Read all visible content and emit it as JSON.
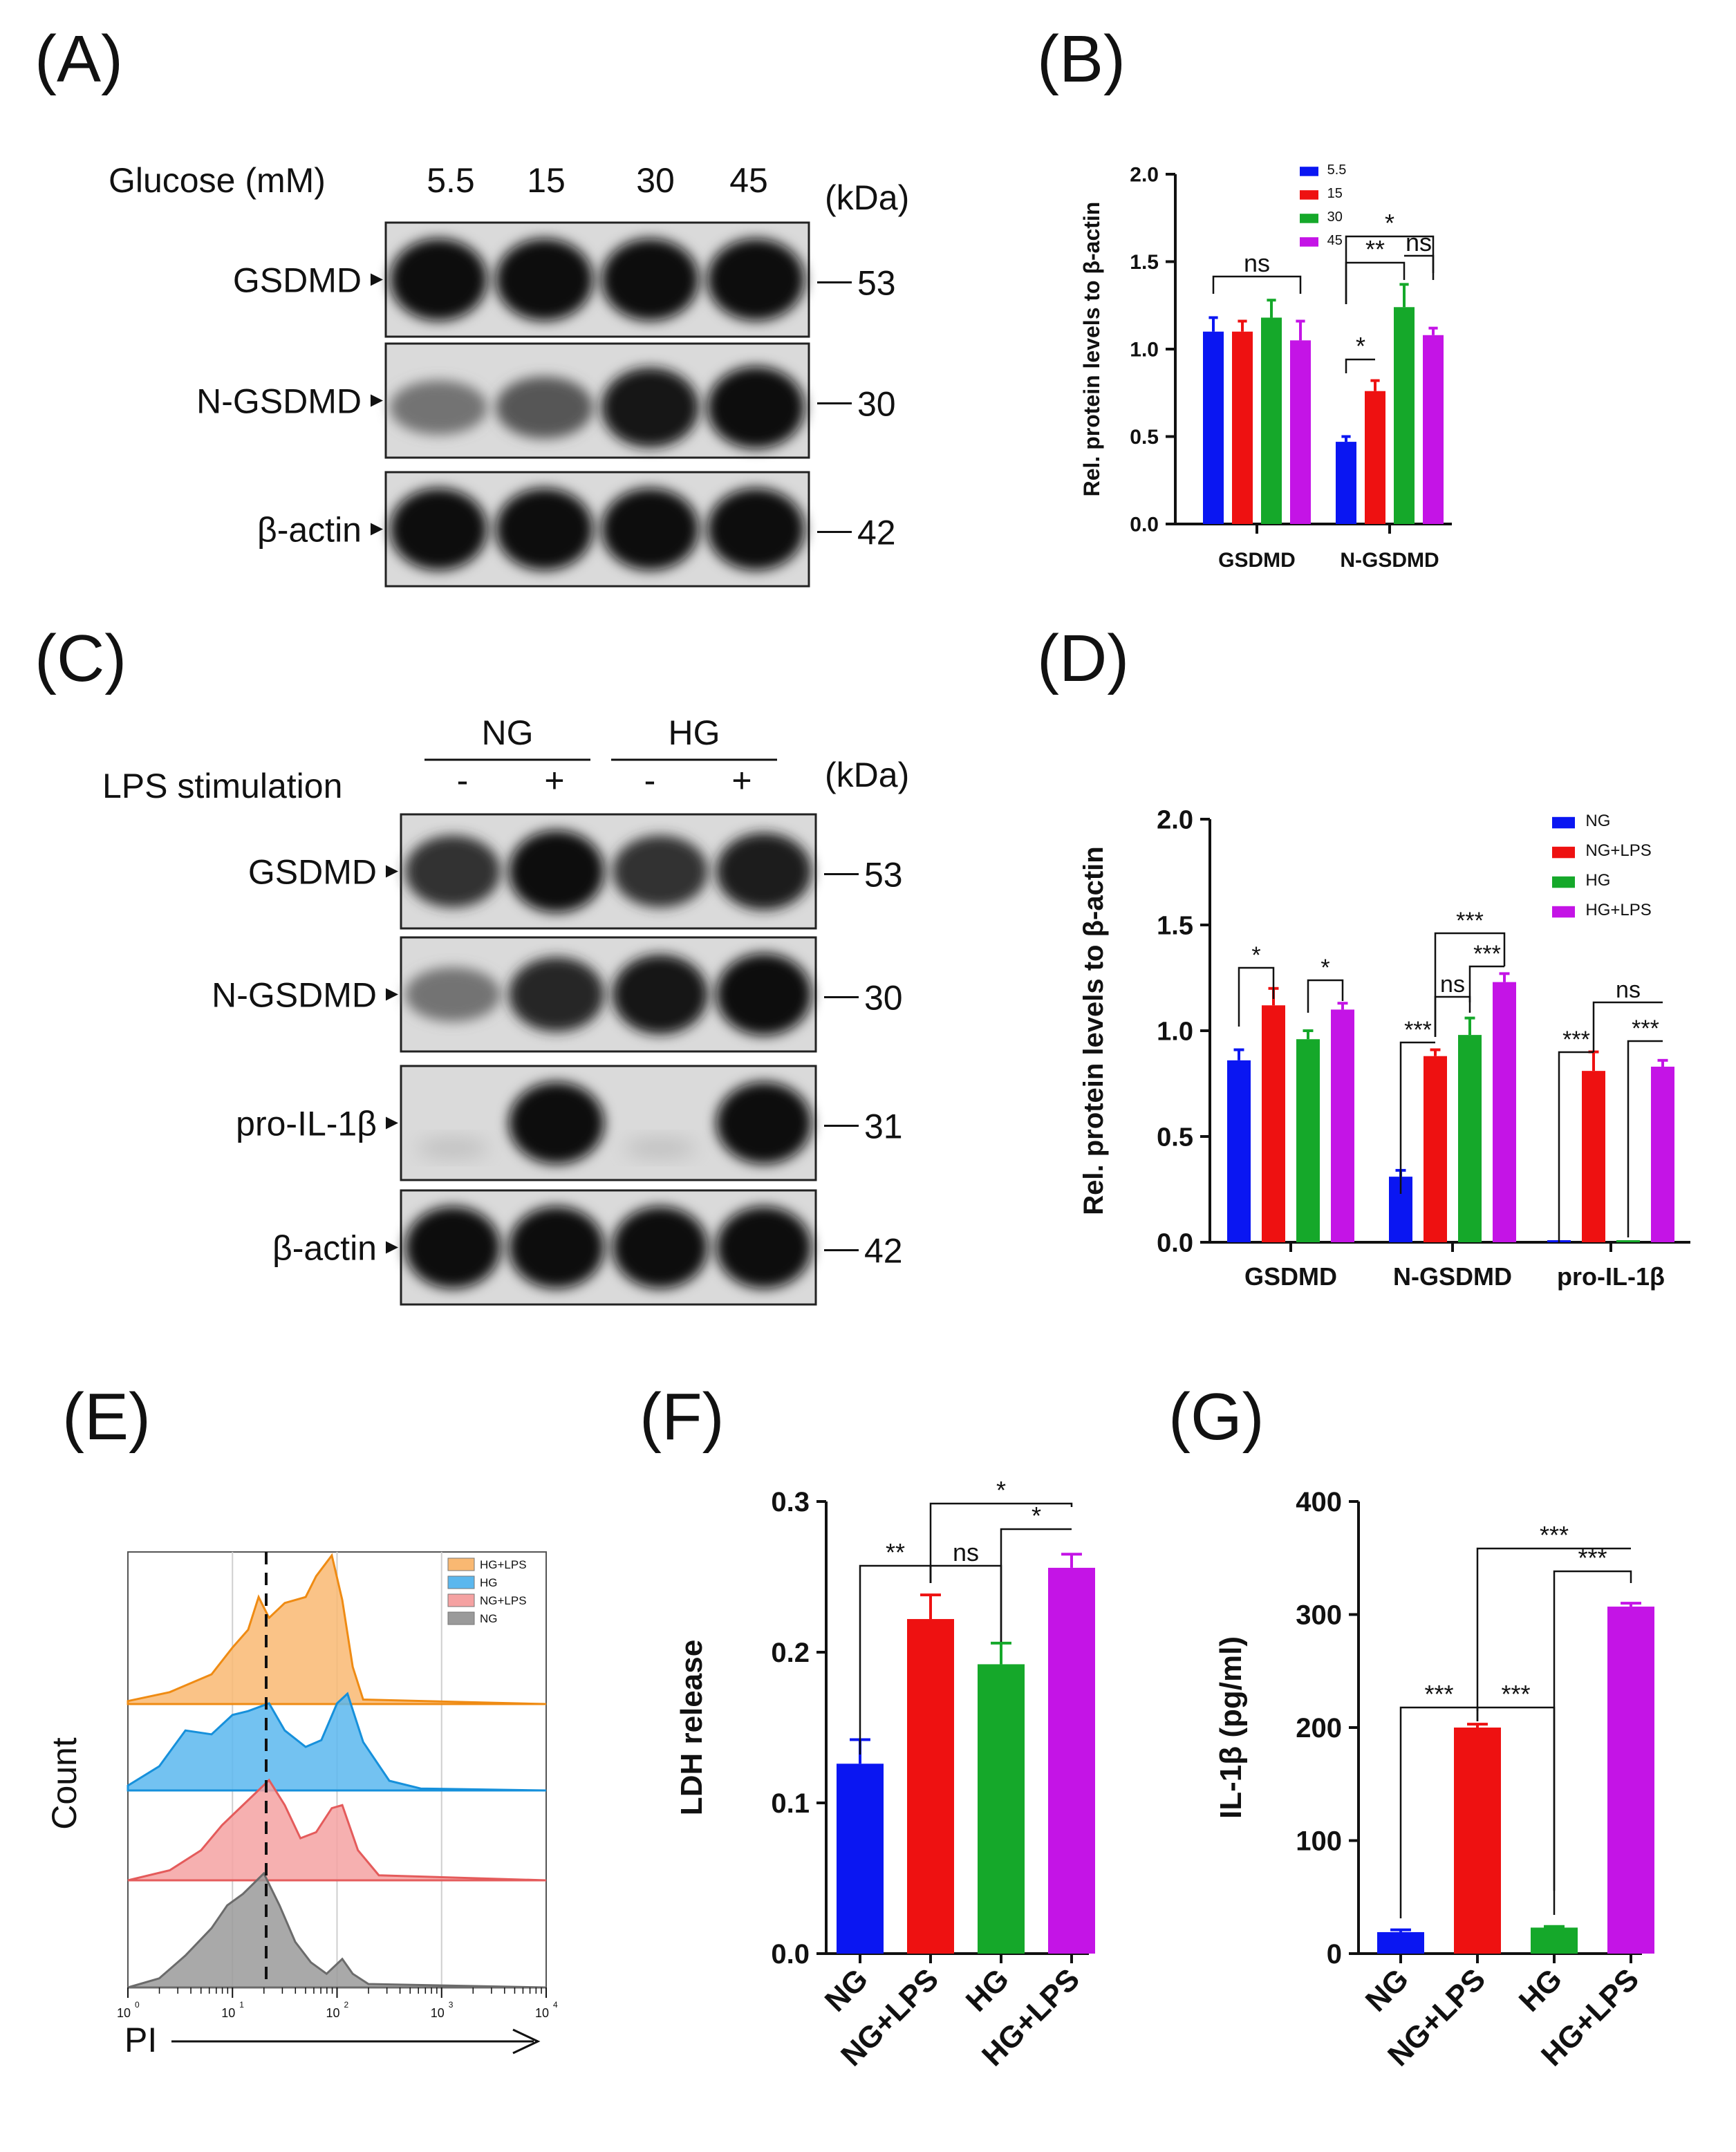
{
  "panels": {
    "A": "(A)",
    "B": "(B)",
    "C": "(C)",
    "D": "(D)",
    "E": "(E)",
    "F": "(F)",
    "G": "(G)"
  },
  "blotA": {
    "condition_label": "Glucose (mM)",
    "lanes": [
      "5.5",
      "15",
      "30",
      "45"
    ],
    "kda_label": "(kDa)",
    "rows": [
      {
        "name": "GSDMD",
        "kda": "53",
        "intensity": [
          1.0,
          1.0,
          1.0,
          1.0
        ]
      },
      {
        "name": "N-GSDMD",
        "kda": "30",
        "intensity": [
          0.45,
          0.6,
          0.95,
          1.0
        ]
      },
      {
        "name": "β-actin",
        "kda": "42",
        "intensity": [
          1.0,
          1.0,
          1.0,
          1.0
        ]
      }
    ]
  },
  "blotC": {
    "groups": [
      "NG",
      "HG"
    ],
    "condition_label": "LPS stimulation",
    "lanes": [
      "-",
      "+",
      "-",
      "+"
    ],
    "kda_label": "(kDa)",
    "rows": [
      {
        "name": "GSDMD",
        "kda": "53",
        "intensity": [
          0.8,
          1.0,
          0.8,
          0.9
        ]
      },
      {
        "name": "N-GSDMD",
        "kda": "30",
        "intensity": [
          0.45,
          0.85,
          0.95,
          1.0
        ]
      },
      {
        "name": "pro-IL-1β",
        "kda": "31",
        "intensity": [
          0.0,
          1.0,
          0.0,
          1.0
        ]
      },
      {
        "name": "β-actin",
        "kda": "42",
        "intensity": [
          1.0,
          1.0,
          1.0,
          1.0
        ]
      }
    ]
  },
  "chart_data": [
    {
      "id": "B",
      "type": "bar",
      "ylabel": "Rel. protein levels to β-actin",
      "ylim": [
        0,
        2.0
      ],
      "yticks": [
        "0.0",
        "0.5",
        "1.0",
        "1.5",
        "2.0"
      ],
      "categories": [
        "GSDMD",
        "N-GSDMD"
      ],
      "series": [
        {
          "name": "5.5",
          "color": "#0a16f2",
          "values": [
            1.1,
            0.47
          ],
          "errors": [
            0.08,
            0.03
          ]
        },
        {
          "name": "15",
          "color": "#ee1111",
          "values": [
            1.1,
            0.76
          ],
          "errors": [
            0.06,
            0.06
          ]
        },
        {
          "name": "30",
          "color": "#15a82a",
          "values": [
            1.18,
            1.24
          ],
          "errors": [
            0.1,
            0.13
          ]
        },
        {
          "name": "45",
          "color": "#c414e6",
          "values": [
            1.05,
            1.08
          ],
          "errors": [
            0.11,
            0.04
          ]
        }
      ],
      "significance": [
        {
          "cat": 0,
          "from": 0,
          "to": 3,
          "label": "ns"
        },
        {
          "cat": 1,
          "from": 0,
          "to": 1,
          "label": "*"
        },
        {
          "cat": 1,
          "from": 0,
          "to": 2,
          "label": "**"
        },
        {
          "cat": 1,
          "from": 2,
          "to": 3,
          "label": "ns"
        },
        {
          "cat": 1,
          "from": 0,
          "to": 3,
          "label": "*"
        }
      ]
    },
    {
      "id": "D",
      "type": "bar",
      "ylabel": "Rel. protein levels to β-actin",
      "ylim": [
        0,
        2.0
      ],
      "yticks": [
        "0.0",
        "0.5",
        "1.0",
        "1.5",
        "2.0"
      ],
      "categories": [
        "GSDMD",
        "N-GSDMD",
        "pro-IL-1β"
      ],
      "series": [
        {
          "name": "NG",
          "color": "#0a16f2",
          "values": [
            0.86,
            0.31,
            0.0
          ],
          "errors": [
            0.05,
            0.03,
            0.0
          ]
        },
        {
          "name": "NG+LPS",
          "color": "#ee1111",
          "values": [
            1.12,
            0.88,
            0.81
          ],
          "errors": [
            0.08,
            0.03,
            0.09
          ]
        },
        {
          "name": "HG",
          "color": "#15a82a",
          "values": [
            0.96,
            0.98,
            0.0
          ],
          "errors": [
            0.04,
            0.08,
            0.0
          ]
        },
        {
          "name": "HG+LPS",
          "color": "#c414e6",
          "values": [
            1.1,
            1.23,
            0.83
          ],
          "errors": [
            0.03,
            0.04,
            0.03
          ]
        }
      ],
      "significance": [
        {
          "cat": 0,
          "from": 0,
          "to": 1,
          "label": "*"
        },
        {
          "cat": 0,
          "from": 2,
          "to": 3,
          "label": "*"
        },
        {
          "cat": 1,
          "from": 0,
          "to": 1,
          "label": "***"
        },
        {
          "cat": 1,
          "from": 1,
          "to": 2,
          "label": "ns"
        },
        {
          "cat": 1,
          "from": 2,
          "to": 3,
          "label": "***"
        },
        {
          "cat": 1,
          "from": 1,
          "to": 3,
          "label": "***"
        },
        {
          "cat": 2,
          "from": 0,
          "to": 1,
          "label": "***"
        },
        {
          "cat": 2,
          "from": 2,
          "to": 3,
          "label": "***"
        },
        {
          "cat": 2,
          "from": 1,
          "to": 3,
          "label": "ns"
        }
      ]
    },
    {
      "id": "E",
      "type": "area",
      "xlabel": "PI",
      "ylabel": "Count",
      "xticks": [
        "10",
        "10",
        "10",
        "10",
        "10"
      ],
      "xtick_exp": [
        "0",
        "1",
        "2",
        "3",
        "4"
      ],
      "legend": [
        {
          "name": "HG+LPS",
          "color": "#f9b872"
        },
        {
          "name": "HG",
          "color": "#5ab7ee"
        },
        {
          "name": "NG+LPS",
          "color": "#f5a2a2"
        },
        {
          "name": "NG",
          "color": "#9a9a9a"
        }
      ]
    },
    {
      "id": "F",
      "type": "bar",
      "ylabel": "LDH release",
      "ylim": [
        0,
        0.3
      ],
      "yticks": [
        "0.0",
        "0.1",
        "0.2",
        "0.3"
      ],
      "categories": [
        "NG",
        "NG+LPS",
        "HG",
        "HG+LPS"
      ],
      "colors": [
        "#0a16f2",
        "#ee1111",
        "#15a82a",
        "#c414e6"
      ],
      "values": [
        0.126,
        0.222,
        0.192,
        0.256
      ],
      "errors": [
        0.016,
        0.016,
        0.014,
        0.009
      ],
      "significance": [
        {
          "from": 0,
          "to": 1,
          "label": "**"
        },
        {
          "from": 1,
          "to": 2,
          "label": "ns"
        },
        {
          "from": 2,
          "to": 3,
          "label": "*"
        },
        {
          "from": 1,
          "to": 3,
          "label": "*"
        }
      ]
    },
    {
      "id": "G",
      "type": "bar",
      "ylabel": "IL-1β (pg/ml)",
      "ylim": [
        0,
        400
      ],
      "yticks": [
        "0",
        "100",
        "200",
        "300",
        "400"
      ],
      "categories": [
        "NG",
        "NG+LPS",
        "HG",
        "HG+LPS"
      ],
      "colors": [
        "#0a16f2",
        "#ee1111",
        "#15a82a",
        "#c414e6"
      ],
      "values": [
        19,
        200,
        23,
        307
      ],
      "errors": [
        2,
        3,
        1,
        3
      ],
      "significance": [
        {
          "from": 0,
          "to": 1,
          "label": "***"
        },
        {
          "from": 1,
          "to": 2,
          "label": "***"
        },
        {
          "from": 2,
          "to": 3,
          "label": "***"
        },
        {
          "from": 1,
          "to": 3,
          "label": "***"
        }
      ]
    }
  ]
}
